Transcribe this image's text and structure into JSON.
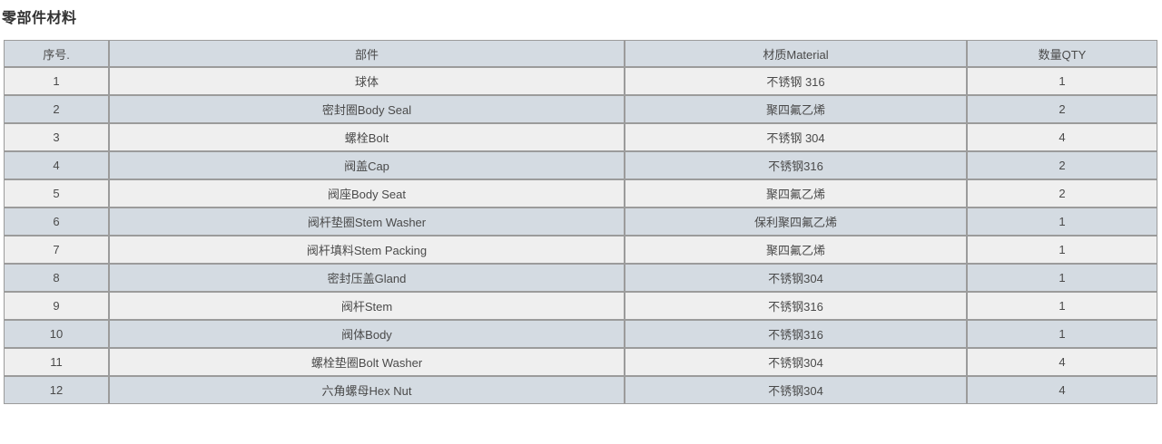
{
  "page": {
    "title": "零部件材料"
  },
  "colors": {
    "title_text": "#333333",
    "text": "#4a4a4a",
    "border": "#9b9b9b",
    "header_bg": "#d4dbe2",
    "row_even_bg": "#d4dbe2",
    "row_odd_bg": "#efefef"
  },
  "table": {
    "columns": [
      "序号.",
      "部件",
      "材质Material",
      "数量QTY"
    ],
    "rows": [
      [
        "1",
        "球体",
        "不锈钢 316",
        "1"
      ],
      [
        "2",
        "密封圈Body Seal",
        "聚四氟乙烯",
        "2"
      ],
      [
        "3",
        "螺栓Bolt",
        "不锈钢 304",
        "4"
      ],
      [
        "4",
        "阀盖Cap",
        "不锈钢316",
        "2"
      ],
      [
        "5",
        "阀座Body Seat",
        "聚四氟乙烯",
        "2"
      ],
      [
        "6",
        "阀杆垫圈Stem Washer",
        "保利聚四氟乙烯",
        "1"
      ],
      [
        "7",
        "阀杆填料Stem Packing",
        "聚四氟乙烯",
        "1"
      ],
      [
        "8",
        "密封压盖Gland",
        "不锈钢304",
        "1"
      ],
      [
        "9",
        "阀杆Stem",
        "不锈钢316",
        "1"
      ],
      [
        "10",
        "阀体Body",
        "不锈钢316",
        "1"
      ],
      [
        "11",
        "螺栓垫圈Bolt Washer",
        "不锈钢304",
        "4"
      ],
      [
        "12",
        "六角螺母Hex Nut",
        "不锈钢304",
        "4"
      ]
    ]
  }
}
